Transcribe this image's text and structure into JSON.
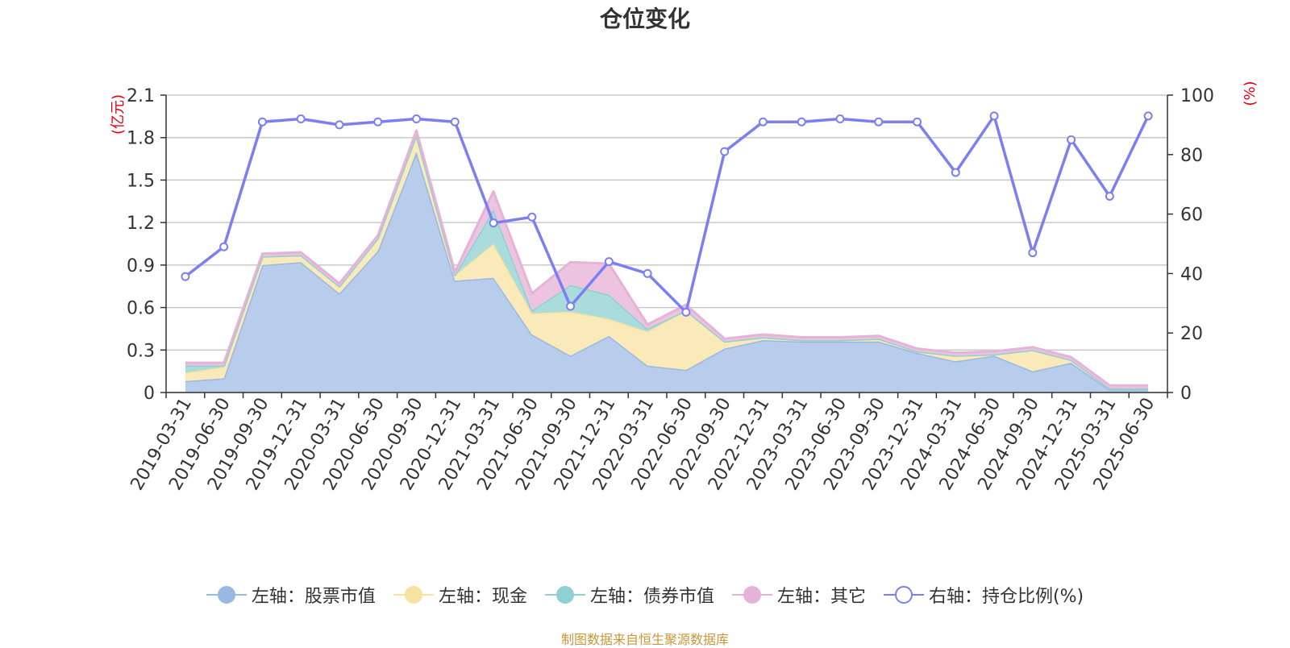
{
  "chart_data": {
    "type": "area",
    "title": "仓位变化",
    "left_axis_unit": "(亿元)",
    "right_axis_unit": "(%)",
    "categories": [
      "2019-03-31",
      "2019-06-30",
      "2019-09-30",
      "2019-12-31",
      "2020-03-31",
      "2020-06-30",
      "2020-09-30",
      "2020-12-31",
      "2021-03-31",
      "2021-06-30",
      "2021-09-30",
      "2021-12-31",
      "2022-03-31",
      "2022-06-30",
      "2022-09-30",
      "2022-12-31",
      "2023-03-31",
      "2023-06-30",
      "2023-09-30",
      "2023-12-31",
      "2024-03-31",
      "2024-06-30",
      "2024-09-30",
      "2024-12-31",
      "2025-03-31",
      "2025-06-30"
    ],
    "left_ylim": [
      0,
      2.1
    ],
    "left_yticks": [
      "0",
      "0.3",
      "0.6",
      "0.9",
      "1.2",
      "1.5",
      "1.8",
      "2.1"
    ],
    "right_ylim": [
      0,
      100
    ],
    "right_yticks": [
      "0",
      "20",
      "40",
      "60",
      "80",
      "100"
    ],
    "grid": true,
    "legend_position": "bottom",
    "stacked_series": [
      {
        "name": "左轴：股票市值",
        "color": "#9bb8e3",
        "fill": "#b7cdeb",
        "values": [
          0.08,
          0.1,
          0.9,
          0.92,
          0.7,
          1.0,
          1.7,
          0.79,
          0.81,
          0.41,
          0.26,
          0.4,
          0.19,
          0.16,
          0.31,
          0.37,
          0.36,
          0.36,
          0.36,
          0.28,
          0.22,
          0.26,
          0.15,
          0.21,
          0.02,
          0.02
        ]
      },
      {
        "name": "左轴：现金",
        "color": "#f7e3a0",
        "fill": "#faeab9",
        "values": [
          0.06,
          0.08,
          0.06,
          0.05,
          0.05,
          0.09,
          0.12,
          0.04,
          0.24,
          0.15,
          0.31,
          0.12,
          0.24,
          0.42,
          0.05,
          0.02,
          0.01,
          0.01,
          0.02,
          0.01,
          0.04,
          0.01,
          0.15,
          0.02,
          0.01,
          0.01
        ]
      },
      {
        "name": "左轴：债券市值",
        "color": "#8fd0d2",
        "fill": "#abdcdc",
        "values": [
          0.05,
          0.01,
          0,
          0,
          0,
          0,
          0,
          0,
          0.24,
          0.02,
          0.19,
          0.17,
          0.02,
          0,
          0,
          0,
          0,
          0,
          0,
          0,
          0,
          0,
          0,
          0,
          0,
          0
        ]
      },
      {
        "name": "左轴：其它",
        "color": "#e6b3d8",
        "fill": "#ecc4df",
        "values": [
          0.02,
          0.02,
          0.02,
          0.02,
          0.02,
          0.02,
          0.03,
          0.02,
          0.13,
          0.12,
          0.16,
          0.22,
          0.03,
          0.04,
          0.02,
          0.02,
          0.02,
          0.02,
          0.02,
          0.02,
          0.02,
          0.02,
          0.02,
          0.02,
          0.02,
          0.02
        ]
      }
    ],
    "line_series": {
      "name": "右轴：持仓比例(%)",
      "color": "#7b7ff0",
      "values": [
        39,
        49,
        91,
        92,
        90,
        91,
        92,
        91,
        57,
        59,
        29,
        44,
        40,
        27,
        81,
        91,
        91,
        92,
        91,
        91,
        74,
        93,
        47,
        85,
        66,
        93
      ]
    }
  },
  "footer": {
    "source": "制图数据来自恒生聚源数据库"
  }
}
